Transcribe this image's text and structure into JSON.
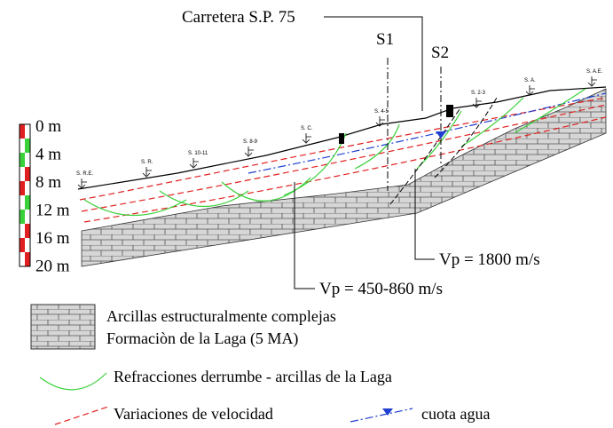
{
  "road_label": "Carretera S.P. 75",
  "boreholes": [
    "S1",
    "S2"
  ],
  "scale": [
    "0 m",
    "4 m",
    "8 m",
    "12 m",
    "16 m",
    "20 m"
  ],
  "stations": [
    "S. R.E.",
    "S. R.",
    "S. 10-11",
    "S. 8-9",
    "S. C.",
    "S. 4-5",
    "S. 2-3",
    "S. A.",
    "S. A.E."
  ],
  "velocities": [
    "Vp = 1800 m/s",
    "Vp = 450-860 m/s"
  ],
  "legend": {
    "rock": [
      "Arcillas estructuralmente complejas",
      "Formaciòn de la Laga (5 MA)"
    ],
    "refraction": "Refracciones derrumbe - arcillas de la Laga",
    "velocity": "Variaciones de velocidad",
    "water": "cuota agua"
  }
}
